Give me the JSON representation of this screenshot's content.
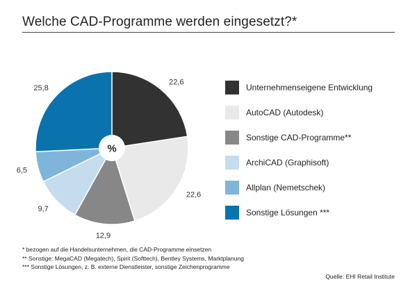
{
  "title": "Welche CAD-Programme werden eingesetzt?*",
  "chart_data": {
    "type": "pie",
    "center_label": "%",
    "categories": [
      "Unternehmenseigene Entwicklung",
      "AutoCAD (Autodesk)",
      "Sonstige CAD-Programme**",
      "ArchiCAD (Graphisoft)",
      "Allplan (Nemetschek)",
      "Sonstige Lösungen ***"
    ],
    "values": [
      22.6,
      22.6,
      12.9,
      9.7,
      6.5,
      25.8
    ],
    "value_labels": [
      "22,6",
      "22,6",
      "12,9",
      "9,7",
      "6,5",
      "25,8"
    ],
    "colors": [
      "#323232",
      "#e9e9e9",
      "#878787",
      "#c4dcee",
      "#7fb5db",
      "#0a72ad"
    ],
    "legend_position": "right"
  },
  "footnotes": [
    "* bezogen auf die Handelsunternehmen, die CAD-Programme einsetzen",
    "** Sonstige: MegaCAD (Megatech), Spirit (Softtech), Bentley Systems, Marktplanung",
    "*** Sonstige Lösungen, z. B. externe Dienstleister, sonstige Zeichenprogramme"
  ],
  "source": "Quelle: EHI Retail Institute"
}
